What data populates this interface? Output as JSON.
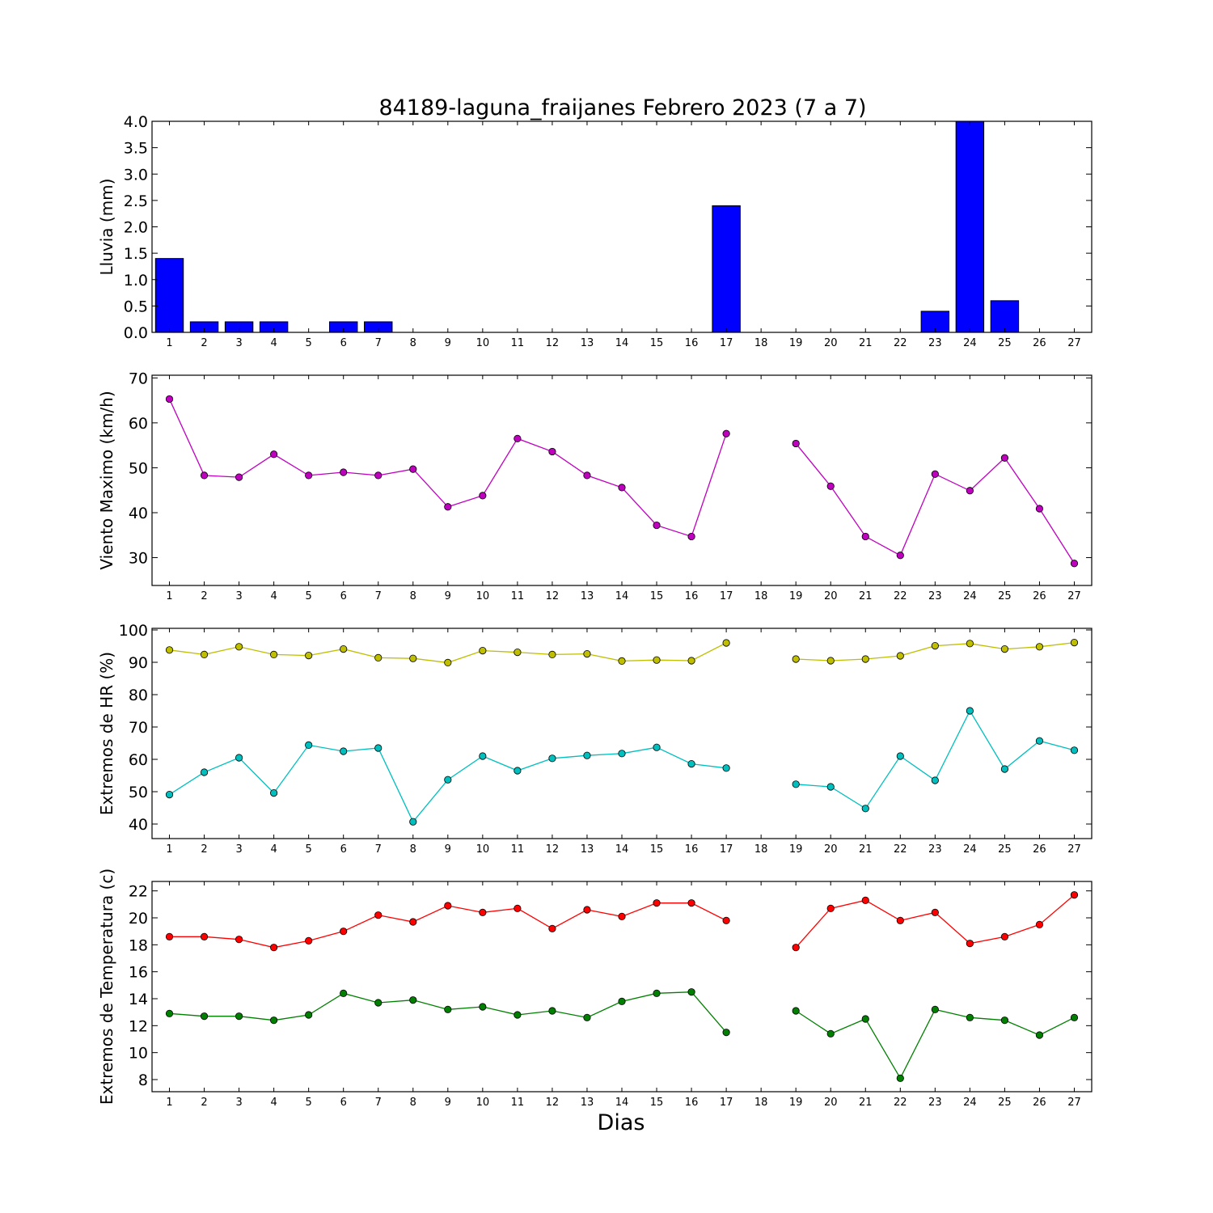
{
  "chart_data": {
    "title": "84189-laguna_fraijanes Febrero 2023  (7 a 7)",
    "xlabel": "Dias",
    "days": [
      1,
      2,
      3,
      4,
      5,
      6,
      7,
      8,
      9,
      10,
      11,
      12,
      13,
      14,
      15,
      16,
      17,
      18,
      19,
      20,
      21,
      22,
      23,
      24,
      25,
      26,
      27
    ],
    "panels": [
      {
        "type": "bar",
        "ylabel": "Lluvia (mm)",
        "ylim": [
          0,
          4.0
        ],
        "yticks": [
          0.0,
          0.5,
          1.0,
          1.5,
          2.0,
          2.5,
          3.0,
          3.5,
          4.0
        ],
        "ytick_decimals": 1,
        "grid": false,
        "series": [
          {
            "color": "#0000ff",
            "values": [
              1.4,
              0.2,
              0.2,
              0.2,
              0.0,
              0.2,
              0.2,
              0.0,
              0.0,
              0.0,
              0.0,
              0.0,
              0.0,
              0.0,
              0.0,
              0.0,
              2.4,
              0.0,
              0.0,
              0.0,
              0.0,
              0.0,
              0.4,
              4.0,
              0.6,
              0.0,
              0.0
            ]
          }
        ]
      },
      {
        "type": "line",
        "ylabel": "Viento Maximo (km/h)",
        "ylim": [
          23.8,
          70.6
        ],
        "yticks": [
          30,
          40,
          50,
          60,
          70
        ],
        "ytick_decimals": 0,
        "grid": false,
        "series": [
          {
            "color": "#bf00bf",
            "values": [
              65.3,
              48.3,
              47.9,
              53.0,
              48.3,
              49.0,
              48.3,
              49.7,
              41.3,
              43.8,
              56.5,
              53.6,
              48.3,
              45.6,
              37.2,
              34.7,
              57.6,
              null,
              55.4,
              45.9,
              34.7,
              30.5,
              48.6,
              44.9,
              52.2,
              40.9,
              28.7
            ]
          }
        ]
      },
      {
        "type": "line",
        "ylabel": "Extremos de HR (%)",
        "ylim": [
          35.5,
          100.5
        ],
        "yticks": [
          40,
          50,
          60,
          70,
          80,
          90,
          100
        ],
        "ytick_decimals": 0,
        "grid": false,
        "series": [
          {
            "color": "#bfbf00",
            "values": [
              93.8,
              92.4,
              94.8,
              92.4,
              92.1,
              94.1,
              91.4,
              91.2,
              89.9,
              93.6,
              93.1,
              92.4,
              92.6,
              90.4,
              90.7,
              90.5,
              96.0,
              null,
              91.0,
              90.5,
              91.0,
              92.0,
              95.1,
              95.8,
              94.1,
              94.8,
              96.1
            ]
          },
          {
            "color": "#00bfbf",
            "values": [
              49.1,
              56.0,
              60.5,
              49.6,
              64.4,
              62.5,
              63.5,
              40.7,
              53.7,
              61.0,
              56.5,
              60.3,
              61.2,
              61.8,
              63.7,
              58.6,
              57.3,
              null,
              52.3,
              51.5,
              44.8,
              61.0,
              53.5,
              75.0,
              57.0,
              65.7,
              62.8
            ]
          }
        ]
      },
      {
        "type": "line",
        "ylabel": "Extremos de Temperatura (c)",
        "ylim": [
          7.1,
          22.7
        ],
        "yticks": [
          8,
          10,
          12,
          14,
          16,
          18,
          20,
          22
        ],
        "ytick_decimals": 0,
        "grid": false,
        "series": [
          {
            "color": "#ff0000",
            "values": [
              18.6,
              18.6,
              18.4,
              17.8,
              18.3,
              19.0,
              20.2,
              19.7,
              20.9,
              20.4,
              20.7,
              19.2,
              20.6,
              20.1,
              21.1,
              21.1,
              19.8,
              null,
              17.8,
              20.7,
              21.3,
              19.8,
              20.4,
              18.1,
              18.6,
              19.5,
              21.7
            ]
          },
          {
            "color": "#008000",
            "values": [
              12.9,
              12.7,
              12.7,
              12.4,
              12.8,
              14.4,
              13.7,
              13.9,
              13.2,
              13.4,
              12.8,
              13.1,
              12.6,
              13.8,
              14.4,
              14.5,
              11.5,
              null,
              13.1,
              11.4,
              12.5,
              8.1,
              13.2,
              12.6,
              12.4,
              11.3,
              12.6
            ]
          }
        ]
      }
    ]
  }
}
